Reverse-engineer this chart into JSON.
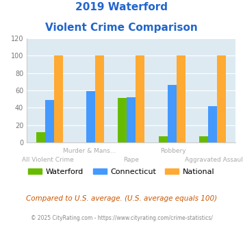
{
  "title_line1": "2019 Waterford",
  "title_line2": "Violent Crime Comparison",
  "categories": [
    "All Violent Crime",
    "Murder & Mans...",
    "Rape",
    "Robbery",
    "Aggravated Assault"
  ],
  "waterford": [
    12,
    0,
    51,
    7,
    7
  ],
  "connecticut": [
    49,
    59,
    52,
    66,
    42
  ],
  "national": [
    100,
    100,
    100,
    100,
    100
  ],
  "color_waterford": "#66bb00",
  "color_connecticut": "#4499ff",
  "color_national": "#ffaa33",
  "ylim": [
    0,
    120
  ],
  "yticks": [
    0,
    20,
    40,
    60,
    80,
    100,
    120
  ],
  "plot_bg": "#ddeaf2",
  "title_color": "#2266cc",
  "footer_text": "Compared to U.S. average. (U.S. average equals 100)",
  "footer_color": "#cc5500",
  "credit_text": "© 2025 CityRating.com - https://www.cityrating.com/crime-statistics/",
  "credit_color": "#888888",
  "legend_labels": [
    "Waterford",
    "Connecticut",
    "National"
  ],
  "bar_width": 0.22
}
